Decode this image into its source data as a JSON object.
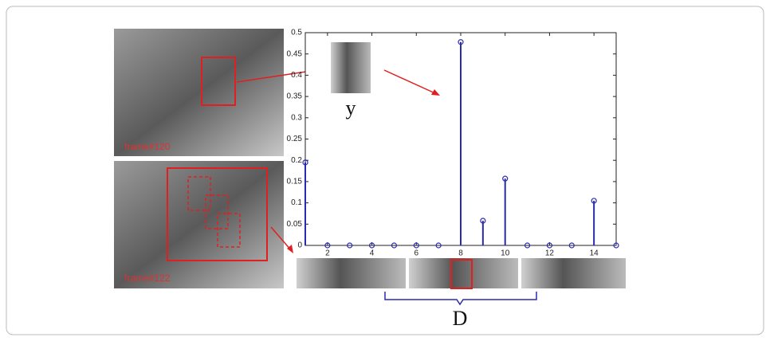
{
  "chart_data": {
    "type": "stem",
    "x": [
      1,
      2,
      3,
      4,
      5,
      6,
      7,
      8,
      9,
      10,
      11,
      12,
      13,
      14,
      15
    ],
    "values": [
      0.195,
      0,
      0,
      0,
      0,
      0,
      0,
      0.478,
      0.058,
      0.157,
      0,
      0,
      0,
      0.105,
      0
    ],
    "color": "#2a2ab0",
    "xlim": [
      1,
      15
    ],
    "xticks": [
      2,
      4,
      6,
      8,
      10,
      12,
      14
    ],
    "ylim": [
      0,
      0.5
    ],
    "yticks": [
      0,
      0.05,
      0.1,
      0.15,
      0.2,
      0.25,
      0.3,
      0.35,
      0.4,
      0.45,
      0.5
    ],
    "face_label": "y",
    "dictionary_label": "D",
    "frame_labels": [
      "frame#120",
      "frame#122"
    ]
  }
}
